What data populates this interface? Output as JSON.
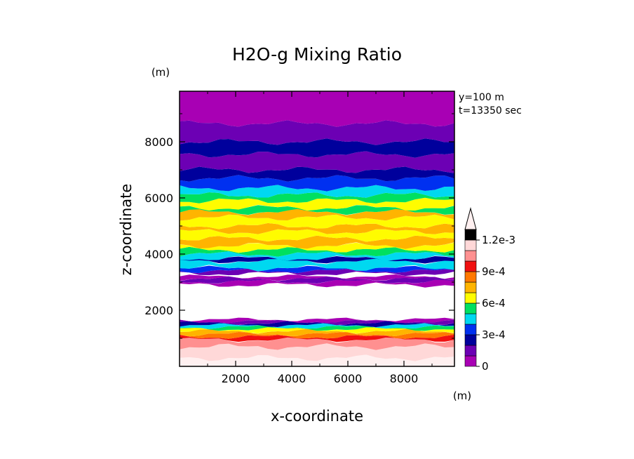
{
  "chart_data": {
    "type": "heatmap",
    "title": "H2O-g Mixing Ratio",
    "xlabel": "x-coordinate",
    "ylabel": "z-coordinate",
    "x_unit": "(m)",
    "y_unit": "(m)",
    "annotations": [
      "y=100 m",
      "t=13350 sec"
    ],
    "xlim": [
      0,
      9800
    ],
    "ylim": [
      0,
      9800
    ],
    "x_ticks": [
      2000,
      4000,
      6000,
      8000
    ],
    "y_ticks": [
      2000,
      4000,
      6000,
      8000
    ],
    "x_tick_labels": [
      "2000",
      "4000",
      "6000",
      "8000"
    ],
    "y_tick_labels": [
      "2000",
      "4000",
      "6000",
      "8000"
    ],
    "colorbar": {
      "min": 0,
      "max": 0.0013,
      "step": 0.0001,
      "extend": "max",
      "tick_values": [
        0,
        0.0003,
        0.0006,
        0.0009,
        0.0012
      ],
      "tick_labels": [
        "0",
        "3e-4",
        "6e-4",
        "9e-4",
        "1.2e-3"
      ],
      "colors": [
        "#a800b4",
        "#6c00b4",
        "#00009c",
        "#0030f0",
        "#00d8f0",
        "#00e060",
        "#fffc00",
        "#ffb400",
        "#ff7800",
        "#f01010",
        "#ff9090",
        "#ffd8d8"
      ],
      "extend_color": "#fff0f0"
    },
    "bands": [
      {
        "z_bottom": 0,
        "z_top": 300,
        "value": 0.00125
      },
      {
        "z_bottom": 300,
        "z_top": 700,
        "value": 0.00115
      },
      {
        "z_bottom": 700,
        "z_top": 950,
        "value": 0.00105
      },
      {
        "z_bottom": 950,
        "z_top": 1050,
        "value": 0.00095
      },
      {
        "z_bottom": 1050,
        "z_top": 1150,
        "value": 0.00085
      },
      {
        "z_bottom": 1150,
        "z_top": 1250,
        "value": 0.00075
      },
      {
        "z_bottom": 1250,
        "z_top": 1330,
        "value": 0.00065
      },
      {
        "z_bottom": 1330,
        "z_top": 1400,
        "value": 0.00055
      },
      {
        "z_bottom": 1400,
        "z_top": 1470,
        "value": 0.00045
      },
      {
        "z_bottom": 1470,
        "z_top": 1540,
        "value": 0.00025
      },
      {
        "z_bottom": 1540,
        "z_top": 1600,
        "value": 0.00015
      },
      {
        "z_bottom": 1600,
        "z_top": 1670,
        "value": 5e-05
      },
      {
        "z_bottom": 1670,
        "z_top": 2900,
        "value": null
      },
      {
        "z_bottom": 2900,
        "z_top": 3020,
        "value": 5e-05
      },
      {
        "z_bottom": 3020,
        "z_top": 3120,
        "value": 0.00015
      },
      {
        "z_bottom": 3120,
        "z_top": 3200,
        "value": 5e-05
      },
      {
        "z_bottom": 3200,
        "z_top": 3300,
        "value": null
      },
      {
        "z_bottom": 3300,
        "z_top": 3400,
        "value": 0.00015
      },
      {
        "z_bottom": 3400,
        "z_top": 3500,
        "value": 0.00035
      },
      {
        "z_bottom": 3500,
        "z_top": 3750,
        "value": 0.00045
      },
      {
        "z_bottom": 3750,
        "z_top": 3850,
        "value": 0.00025
      },
      {
        "z_bottom": 3850,
        "z_top": 4000,
        "value": 0.00045
      },
      {
        "z_bottom": 4000,
        "z_top": 4150,
        "value": 0.00055
      },
      {
        "z_bottom": 4150,
        "z_top": 4300,
        "value": 0.00065
      },
      {
        "z_bottom": 4300,
        "z_top": 4550,
        "value": 0.00075
      },
      {
        "z_bottom": 4550,
        "z_top": 4800,
        "value": 0.00065
      },
      {
        "z_bottom": 4800,
        "z_top": 5000,
        "value": 0.00075
      },
      {
        "z_bottom": 5000,
        "z_top": 5300,
        "value": 0.00065
      },
      {
        "z_bottom": 5300,
        "z_top": 5500,
        "value": 0.00075
      },
      {
        "z_bottom": 5500,
        "z_top": 5650,
        "value": 0.00055
      },
      {
        "z_bottom": 5650,
        "z_top": 5900,
        "value": 0.00065
      },
      {
        "z_bottom": 5900,
        "z_top": 6100,
        "value": 0.00055
      },
      {
        "z_bottom": 6100,
        "z_top": 6350,
        "value": 0.00045
      },
      {
        "z_bottom": 6350,
        "z_top": 6700,
        "value": 0.00035
      },
      {
        "z_bottom": 6700,
        "z_top": 7000,
        "value": 0.00025
      },
      {
        "z_bottom": 7000,
        "z_top": 7550,
        "value": 0.00015
      },
      {
        "z_bottom": 7550,
        "z_top": 8000,
        "value": 0.00025
      },
      {
        "z_bottom": 8000,
        "z_top": 8650,
        "value": 0.00015
      },
      {
        "z_bottom": 8650,
        "z_top": 9800,
        "value": 5e-05
      }
    ]
  }
}
